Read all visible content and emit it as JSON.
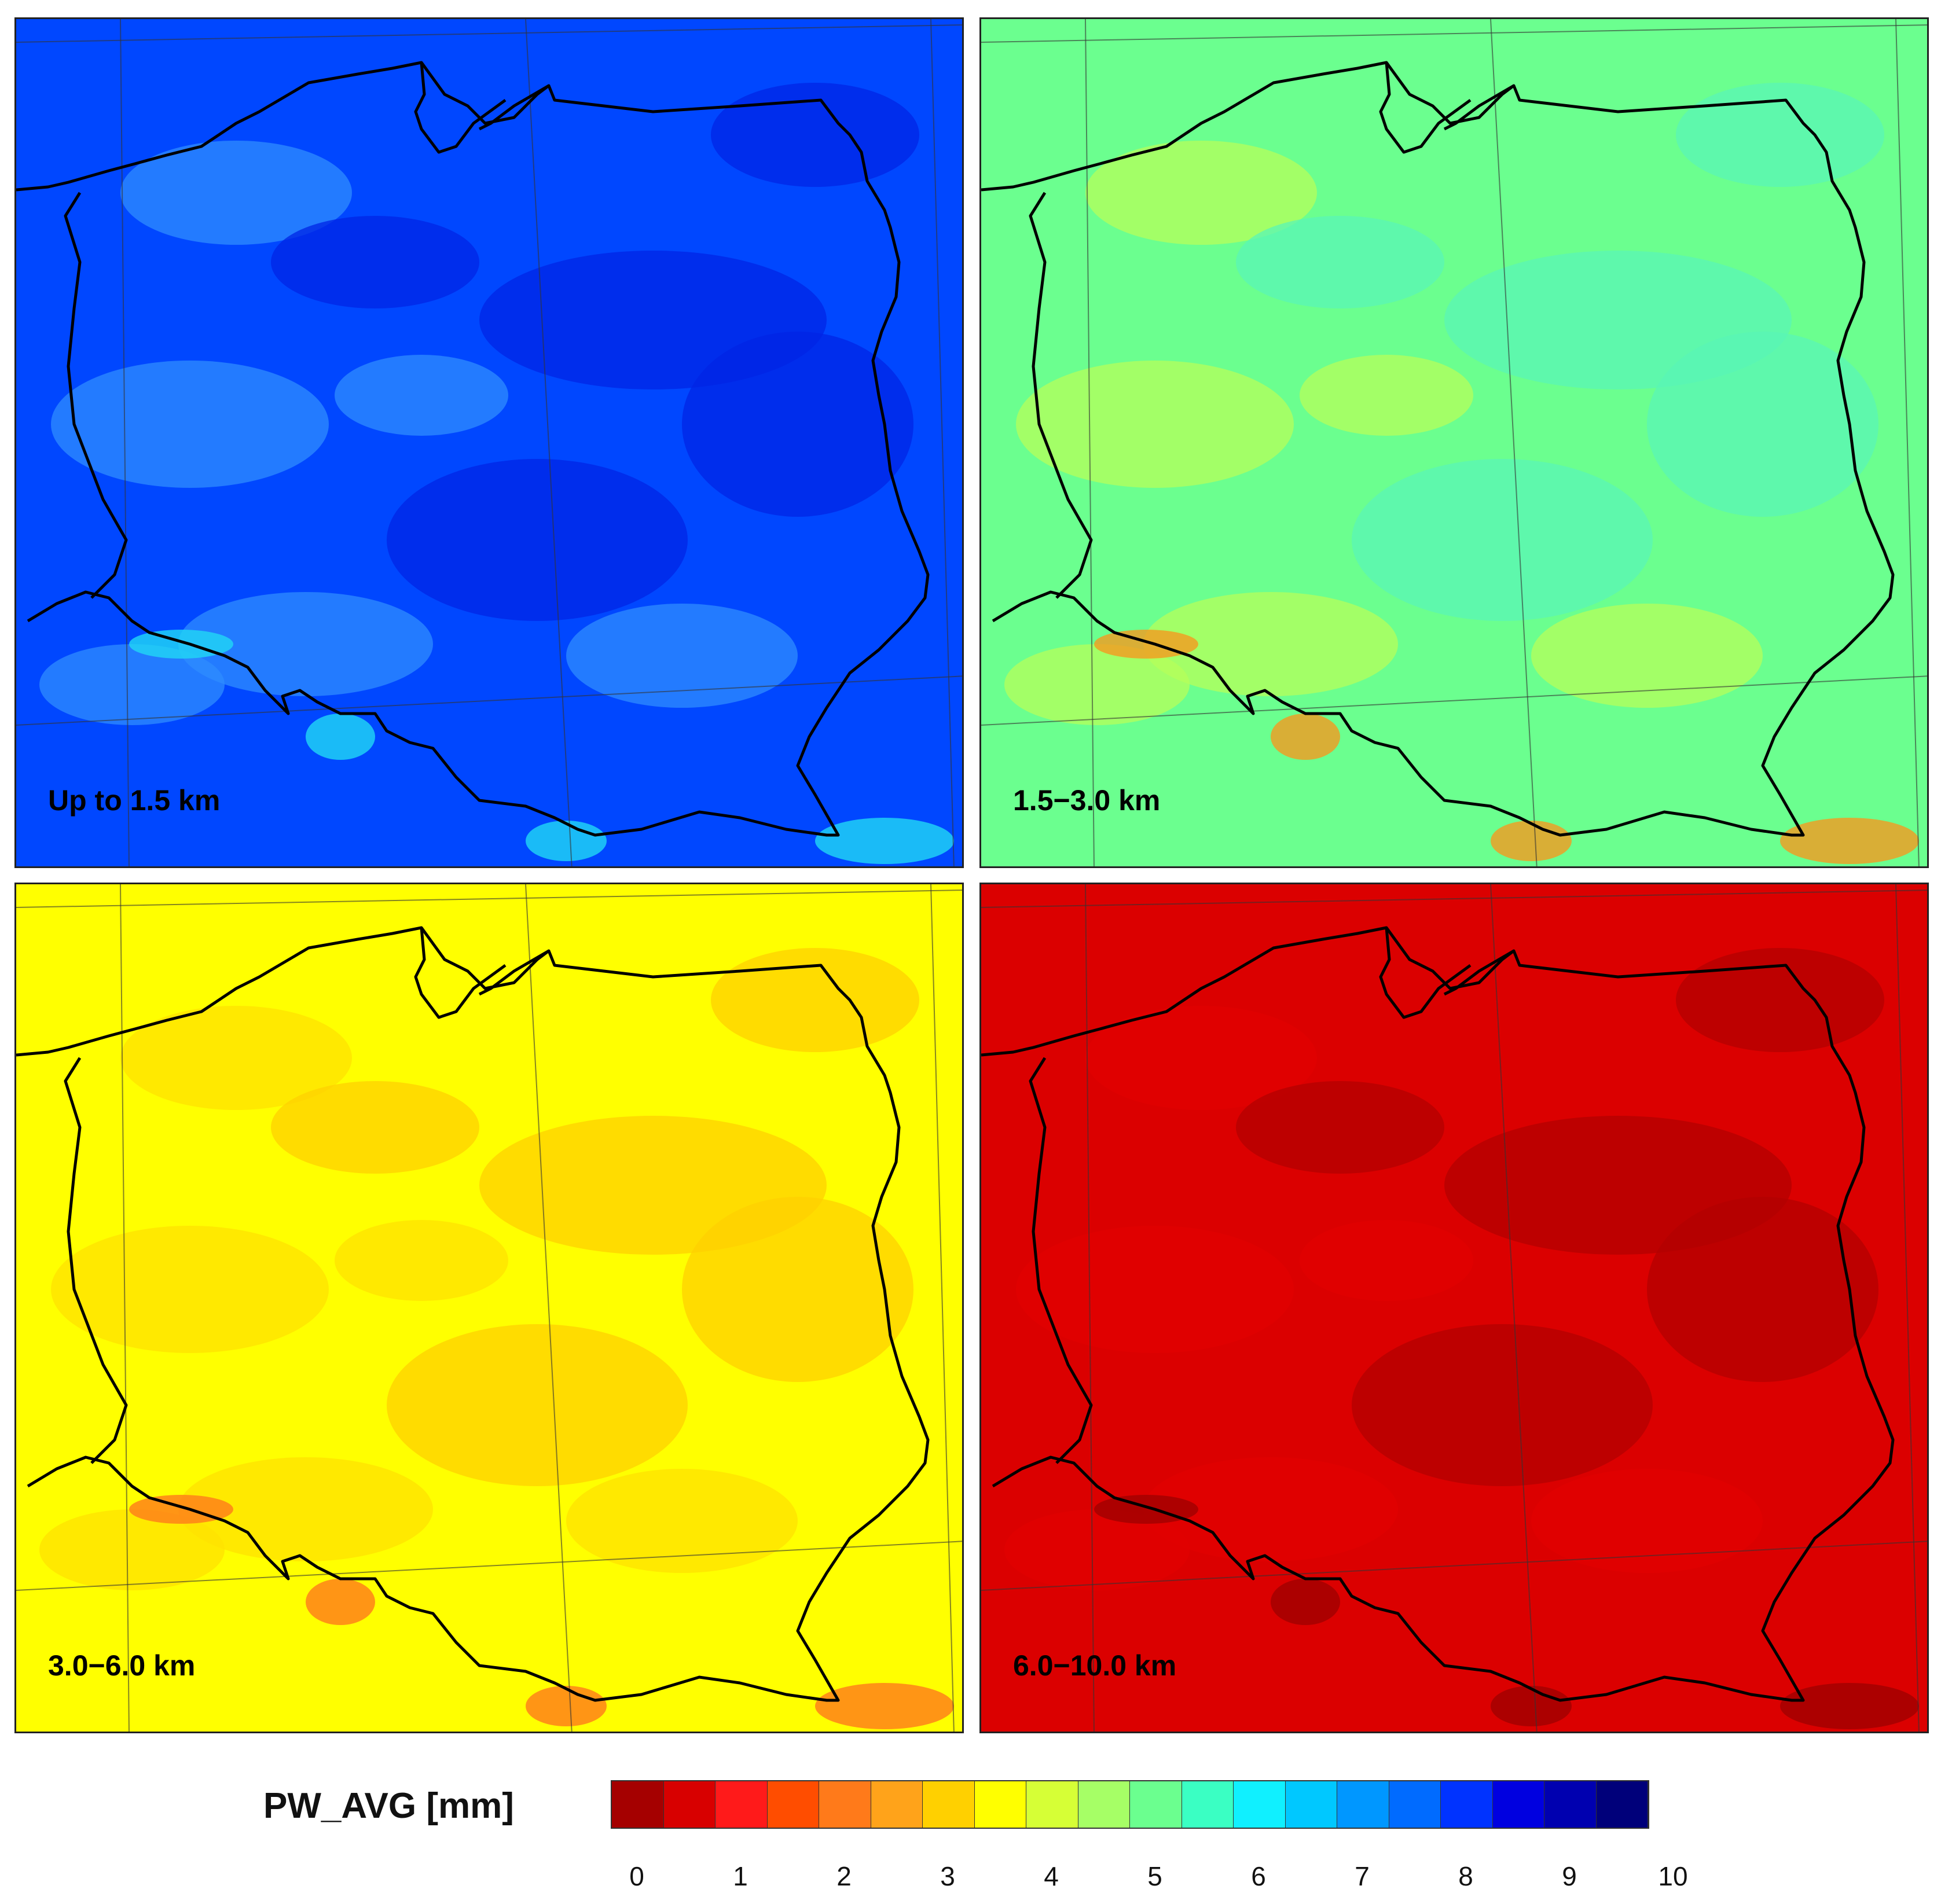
{
  "panels": [
    {
      "label": "Up to 1.5 km",
      "base": "#0047ff",
      "dark": "#0024e6",
      "light": "#2f8cff",
      "hot": "#21d8f5"
    },
    {
      "label": "1.5−3.0 km",
      "base": "#6bff8f",
      "dark": "#5af5b5",
      "light": "#b6ff5a",
      "hot": "#f59a1f"
    },
    {
      "label": "3.0−6.0 km",
      "base": "#ffff00",
      "dark": "#ffd000",
      "light": "#ffe200",
      "hot": "#ff7a1a"
    },
    {
      "label": "6.0−10.0 km",
      "base": "#db0000",
      "dark": "#b30000",
      "light": "#e10000",
      "hot": "#a00000"
    }
  ],
  "legend": {
    "title": "PW_AVG [mm]",
    "colors": [
      "#a50000",
      "#d80000",
      "#ff1a1a",
      "#ff4d00",
      "#ff7a1a",
      "#ffa31a",
      "#ffd000",
      "#ffff00",
      "#d6ff36",
      "#a6ff66",
      "#6bff8f",
      "#3affc3",
      "#10f0ff",
      "#00c8ff",
      "#0097ff",
      "#006bff",
      "#0033ff",
      "#0000e0",
      "#0000b0",
      "#00007a"
    ],
    "ticks": [
      "0",
      "1",
      "2",
      "3",
      "4",
      "5",
      "6",
      "7",
      "8",
      "9",
      "10"
    ]
  }
}
